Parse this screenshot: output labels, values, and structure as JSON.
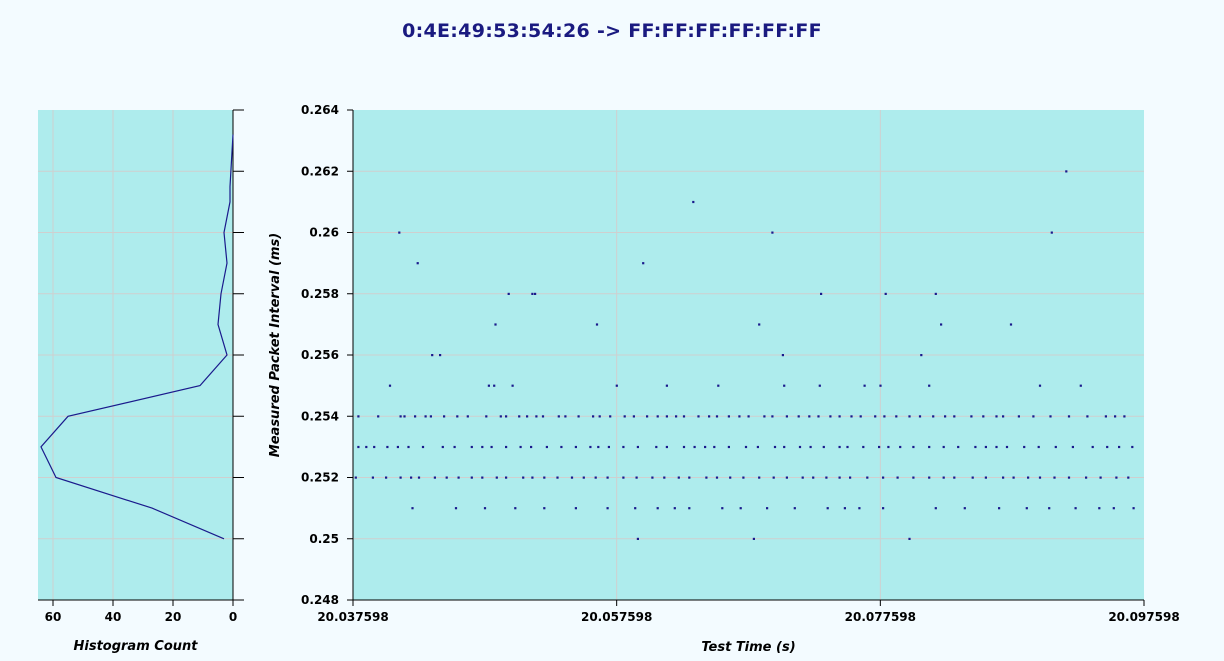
{
  "title": "0:4E:49:53:54:26 -> FF:FF:FF:FF:FF:FF",
  "colors": {
    "plot_bg": "#aeeced",
    "grid": "#cfcfcf",
    "series": "#1a1a8c",
    "page_bg": "#f3fbff"
  },
  "chart_data": [
    {
      "type": "line",
      "name": "histogram",
      "xlabel": "Histogram Count",
      "ylabel": "",
      "xlim": [
        65,
        0
      ],
      "ylim": [
        0.248,
        0.264
      ],
      "x_ticks": [
        "60",
        "40",
        "20",
        "0"
      ],
      "x_tick_values": [
        60,
        40,
        20,
        0
      ],
      "grid": true,
      "points": [
        {
          "x": 0,
          "y": 0.2632
        },
        {
          "x": 1,
          "y": 0.2615
        },
        {
          "x": 1,
          "y": 0.261
        },
        {
          "x": 3,
          "y": 0.26
        },
        {
          "x": 2,
          "y": 0.259
        },
        {
          "x": 4,
          "y": 0.258
        },
        {
          "x": 5,
          "y": 0.257
        },
        {
          "x": 2,
          "y": 0.256
        },
        {
          "x": 11,
          "y": 0.255
        },
        {
          "x": 55,
          "y": 0.254
        },
        {
          "x": 64,
          "y": 0.253
        },
        {
          "x": 59,
          "y": 0.252
        },
        {
          "x": 27,
          "y": 0.251
        },
        {
          "x": 3,
          "y": 0.25
        }
      ]
    },
    {
      "type": "scatter",
      "name": "intervals",
      "xlabel": "Test Time (s)",
      "ylabel": "Measured Packet Interval (ms)",
      "xlim": [
        20.037598,
        20.097598
      ],
      "ylim": [
        0.248,
        0.264
      ],
      "x_ticks": [
        "20.037598",
        "20.057598",
        "20.077598",
        "20.097598"
      ],
      "x_tick_values": [
        20.037598,
        20.057598,
        20.077598,
        20.097598
      ],
      "y_ticks": [
        "0.248",
        "0.25",
        "0.252",
        "0.254",
        "0.256",
        "0.258",
        "0.26",
        "0.262",
        "0.264"
      ],
      "y_tick_values": [
        0.248,
        0.25,
        0.252,
        0.254,
        0.256,
        0.258,
        0.26,
        0.262,
        0.264
      ],
      "grid": true,
      "points": [
        [
          20.0411,
          0.26
        ],
        [
          20.0425,
          0.259
        ],
        [
          20.0442,
          0.256
        ],
        [
          20.0494,
          0.258
        ],
        [
          20.0514,
          0.258
        ],
        [
          20.0512,
          0.258
        ],
        [
          20.0484,
          0.257
        ],
        [
          20.0561,
          0.257
        ],
        [
          20.0596,
          0.259
        ],
        [
          20.0634,
          0.261
        ],
        [
          20.0694,
          0.26
        ],
        [
          20.0702,
          0.256
        ],
        [
          20.0684,
          0.257
        ],
        [
          20.0731,
          0.258
        ],
        [
          20.078,
          0.258
        ],
        [
          20.0818,
          0.258
        ],
        [
          20.0807,
          0.256
        ],
        [
          20.0822,
          0.257
        ],
        [
          20.0875,
          0.257
        ],
        [
          20.0906,
          0.26
        ],
        [
          20.0917,
          0.262
        ],
        [
          20.0404,
          0.255
        ],
        [
          20.0436,
          0.256
        ],
        [
          20.0479,
          0.255
        ],
        [
          20.0497,
          0.255
        ],
        [
          20.0614,
          0.255
        ],
        [
          20.0653,
          0.255
        ],
        [
          20.0703,
          0.255
        ],
        [
          20.073,
          0.255
        ],
        [
          20.0764,
          0.255
        ],
        [
          20.0776,
          0.255
        ],
        [
          20.0813,
          0.255
        ],
        [
          20.0897,
          0.255
        ],
        [
          20.0928,
          0.255
        ],
        [
          20.0576,
          0.255
        ],
        [
          20.0483,
          0.255
        ],
        [
          20.038,
          0.254
        ],
        [
          20.0395,
          0.254
        ],
        [
          20.0412,
          0.254
        ],
        [
          20.0415,
          0.254
        ],
        [
          20.0423,
          0.254
        ],
        [
          20.0431,
          0.254
        ],
        [
          20.0435,
          0.254
        ],
        [
          20.0445,
          0.254
        ],
        [
          20.0455,
          0.254
        ],
        [
          20.0463,
          0.254
        ],
        [
          20.0477,
          0.254
        ],
        [
          20.0488,
          0.254
        ],
        [
          20.0492,
          0.254
        ],
        [
          20.0502,
          0.254
        ],
        [
          20.0508,
          0.254
        ],
        [
          20.0515,
          0.254
        ],
        [
          20.052,
          0.254
        ],
        [
          20.0532,
          0.254
        ],
        [
          20.0537,
          0.254
        ],
        [
          20.0547,
          0.254
        ],
        [
          20.0558,
          0.254
        ],
        [
          20.0563,
          0.254
        ],
        [
          20.0571,
          0.254
        ],
        [
          20.0582,
          0.254
        ],
        [
          20.0589,
          0.254
        ],
        [
          20.0599,
          0.254
        ],
        [
          20.0607,
          0.254
        ],
        [
          20.0614,
          0.254
        ],
        [
          20.0621,
          0.254
        ],
        [
          20.0627,
          0.254
        ],
        [
          20.0638,
          0.254
        ],
        [
          20.0646,
          0.254
        ],
        [
          20.0652,
          0.254
        ],
        [
          20.0661,
          0.254
        ],
        [
          20.0669,
          0.254
        ],
        [
          20.0676,
          0.254
        ],
        [
          20.0688,
          0.254
        ],
        [
          20.0694,
          0.254
        ],
        [
          20.0705,
          0.254
        ],
        [
          20.0714,
          0.254
        ],
        [
          20.0722,
          0.254
        ],
        [
          20.0729,
          0.254
        ],
        [
          20.0738,
          0.254
        ],
        [
          20.0745,
          0.254
        ],
        [
          20.0754,
          0.254
        ],
        [
          20.0761,
          0.254
        ],
        [
          20.0772,
          0.254
        ],
        [
          20.0779,
          0.254
        ],
        [
          20.0788,
          0.254
        ],
        [
          20.0798,
          0.254
        ],
        [
          20.0806,
          0.254
        ],
        [
          20.0816,
          0.254
        ],
        [
          20.0825,
          0.254
        ],
        [
          20.0832,
          0.254
        ],
        [
          20.0845,
          0.254
        ],
        [
          20.0854,
          0.254
        ],
        [
          20.0864,
          0.254
        ],
        [
          20.0869,
          0.254
        ],
        [
          20.0881,
          0.254
        ],
        [
          20.0892,
          0.254
        ],
        [
          20.0905,
          0.254
        ],
        [
          20.0919,
          0.254
        ],
        [
          20.0933,
          0.254
        ],
        [
          20.0947,
          0.254
        ],
        [
          20.0954,
          0.254
        ],
        [
          20.0961,
          0.254
        ],
        [
          20.038,
          0.253
        ],
        [
          20.0386,
          0.253
        ],
        [
          20.0392,
          0.253
        ],
        [
          20.0402,
          0.253
        ],
        [
          20.041,
          0.253
        ],
        [
          20.0418,
          0.253
        ],
        [
          20.0429,
          0.253
        ],
        [
          20.0444,
          0.253
        ],
        [
          20.0453,
          0.253
        ],
        [
          20.0466,
          0.253
        ],
        [
          20.0474,
          0.253
        ],
        [
          20.0481,
          0.253
        ],
        [
          20.0492,
          0.253
        ],
        [
          20.0503,
          0.253
        ],
        [
          20.0511,
          0.253
        ],
        [
          20.0523,
          0.253
        ],
        [
          20.0534,
          0.253
        ],
        [
          20.0545,
          0.253
        ],
        [
          20.0556,
          0.253
        ],
        [
          20.0562,
          0.253
        ],
        [
          20.057,
          0.253
        ],
        [
          20.0581,
          0.253
        ],
        [
          20.0592,
          0.253
        ],
        [
          20.0606,
          0.253
        ],
        [
          20.0614,
          0.253
        ],
        [
          20.0627,
          0.253
        ],
        [
          20.0635,
          0.253
        ],
        [
          20.0643,
          0.253
        ],
        [
          20.065,
          0.253
        ],
        [
          20.0661,
          0.253
        ],
        [
          20.0674,
          0.253
        ],
        [
          20.0683,
          0.253
        ],
        [
          20.0696,
          0.253
        ],
        [
          20.0703,
          0.253
        ],
        [
          20.0715,
          0.253
        ],
        [
          20.0723,
          0.253
        ],
        [
          20.0733,
          0.253
        ],
        [
          20.0745,
          0.253
        ],
        [
          20.0751,
          0.253
        ],
        [
          20.0763,
          0.253
        ],
        [
          20.0775,
          0.253
        ],
        [
          20.0782,
          0.253
        ],
        [
          20.0791,
          0.253
        ],
        [
          20.0801,
          0.253
        ],
        [
          20.0813,
          0.253
        ],
        [
          20.0824,
          0.253
        ],
        [
          20.0835,
          0.253
        ],
        [
          20.0848,
          0.253
        ],
        [
          20.0856,
          0.253
        ],
        [
          20.0864,
          0.253
        ],
        [
          20.0872,
          0.253
        ],
        [
          20.0885,
          0.253
        ],
        [
          20.0896,
          0.253
        ],
        [
          20.0909,
          0.253
        ],
        [
          20.0922,
          0.253
        ],
        [
          20.0937,
          0.253
        ],
        [
          20.0948,
          0.253
        ],
        [
          20.0957,
          0.253
        ],
        [
          20.0967,
          0.253
        ],
        [
          20.0378,
          0.252
        ],
        [
          20.0391,
          0.252
        ],
        [
          20.0401,
          0.252
        ],
        [
          20.0412,
          0.252
        ],
        [
          20.042,
          0.252
        ],
        [
          20.0426,
          0.252
        ],
        [
          20.0438,
          0.252
        ],
        [
          20.0447,
          0.252
        ],
        [
          20.0456,
          0.252
        ],
        [
          20.0466,
          0.252
        ],
        [
          20.0474,
          0.252
        ],
        [
          20.0485,
          0.252
        ],
        [
          20.0492,
          0.252
        ],
        [
          20.0505,
          0.252
        ],
        [
          20.0512,
          0.252
        ],
        [
          20.0521,
          0.252
        ],
        [
          20.0531,
          0.252
        ],
        [
          20.0542,
          0.252
        ],
        [
          20.0551,
          0.252
        ],
        [
          20.056,
          0.252
        ],
        [
          20.0569,
          0.252
        ],
        [
          20.0581,
          0.252
        ],
        [
          20.0591,
          0.252
        ],
        [
          20.0603,
          0.252
        ],
        [
          20.0612,
          0.252
        ],
        [
          20.0623,
          0.252
        ],
        [
          20.0631,
          0.252
        ],
        [
          20.0644,
          0.252
        ],
        [
          20.0652,
          0.252
        ],
        [
          20.0662,
          0.252
        ],
        [
          20.0672,
          0.252
        ],
        [
          20.0684,
          0.252
        ],
        [
          20.0695,
          0.252
        ],
        [
          20.0705,
          0.252
        ],
        [
          20.0717,
          0.252
        ],
        [
          20.0725,
          0.252
        ],
        [
          20.0735,
          0.252
        ],
        [
          20.0745,
          0.252
        ],
        [
          20.0753,
          0.252
        ],
        [
          20.0766,
          0.252
        ],
        [
          20.0778,
          0.252
        ],
        [
          20.0789,
          0.252
        ],
        [
          20.0801,
          0.252
        ],
        [
          20.0813,
          0.252
        ],
        [
          20.0824,
          0.252
        ],
        [
          20.0832,
          0.252
        ],
        [
          20.0846,
          0.252
        ],
        [
          20.0856,
          0.252
        ],
        [
          20.0869,
          0.252
        ],
        [
          20.0877,
          0.252
        ],
        [
          20.0888,
          0.252
        ],
        [
          20.0897,
          0.252
        ],
        [
          20.0908,
          0.252
        ],
        [
          20.0919,
          0.252
        ],
        [
          20.0932,
          0.252
        ],
        [
          20.0943,
          0.252
        ],
        [
          20.0955,
          0.252
        ],
        [
          20.0964,
          0.252
        ],
        [
          20.0421,
          0.251
        ],
        [
          20.0454,
          0.251
        ],
        [
          20.0476,
          0.251
        ],
        [
          20.0499,
          0.251
        ],
        [
          20.0521,
          0.251
        ],
        [
          20.0545,
          0.251
        ],
        [
          20.0569,
          0.251
        ],
        [
          20.059,
          0.251
        ],
        [
          20.0607,
          0.251
        ],
        [
          20.062,
          0.251
        ],
        [
          20.0631,
          0.251
        ],
        [
          20.0656,
          0.251
        ],
        [
          20.067,
          0.251
        ],
        [
          20.069,
          0.251
        ],
        [
          20.0711,
          0.251
        ],
        [
          20.0736,
          0.251
        ],
        [
          20.0749,
          0.251
        ],
        [
          20.076,
          0.251
        ],
        [
          20.0778,
          0.251
        ],
        [
          20.0818,
          0.251
        ],
        [
          20.084,
          0.251
        ],
        [
          20.0866,
          0.251
        ],
        [
          20.0887,
          0.251
        ],
        [
          20.0904,
          0.251
        ],
        [
          20.0924,
          0.251
        ],
        [
          20.0942,
          0.251
        ],
        [
          20.0953,
          0.251
        ],
        [
          20.0968,
          0.251
        ],
        [
          20.0592,
          0.25
        ],
        [
          20.068,
          0.25
        ],
        [
          20.0798,
          0.25
        ]
      ]
    }
  ]
}
